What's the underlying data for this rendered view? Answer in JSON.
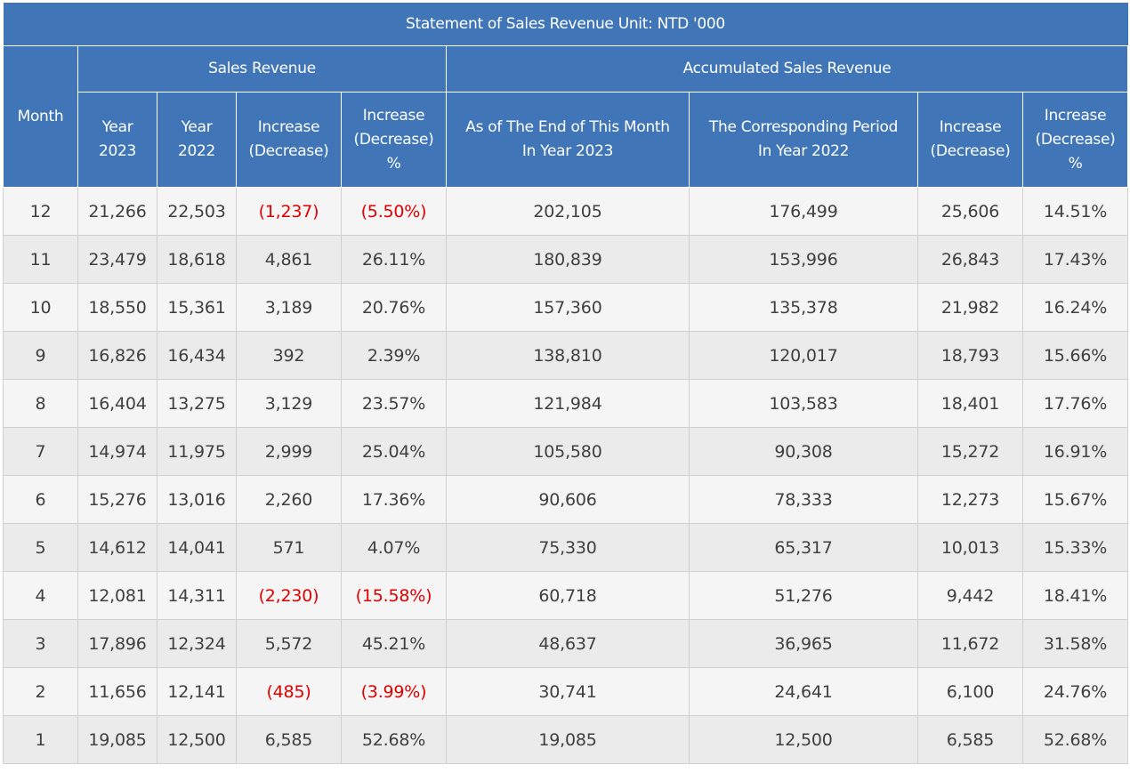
{
  "title": "Statement of Sales Revenue  Unit: NTD '000",
  "headers": {
    "month": "Month",
    "sales_revenue": "Sales Revenue",
    "accumulated": "Accumulated Sales Revenue",
    "year2023_line1": "Year",
    "year2023_line2": "2023",
    "year2022_line1": "Year",
    "year2022_line2": "2022",
    "inc_line1": "Increase",
    "inc_line2": "(Decrease)",
    "incpct_line1": "Increase",
    "incpct_line2": "(Decrease)",
    "incpct_line3": "%",
    "asof_line1": "As of The End of This Month",
    "asof_line2": "In Year 2023",
    "corr_line1": "The Corresponding Period",
    "corr_line2": "In Year 2022",
    "acc_inc_line1": "Increase",
    "acc_inc_line2": "(Decrease)",
    "acc_incpct_line1": "Increase",
    "acc_incpct_line2": "(Decrease)",
    "acc_incpct_line3": "%"
  },
  "rows": [
    {
      "month": "12",
      "y2023": "21,266",
      "y2022": "22,503",
      "inc": "(1,237)",
      "inc_pct": "(5.50%)",
      "acc2023": "202,105",
      "acc2022": "176,499",
      "acc_inc": "25,606",
      "acc_pct": "14.51%"
    },
    {
      "month": "11",
      "y2023": "23,479",
      "y2022": "18,618",
      "inc": "4,861",
      "inc_pct": "26.11%",
      "acc2023": "180,839",
      "acc2022": "153,996",
      "acc_inc": "26,843",
      "acc_pct": "17.43%"
    },
    {
      "month": "10",
      "y2023": "18,550",
      "y2022": "15,361",
      "inc": "3,189",
      "inc_pct": "20.76%",
      "acc2023": "157,360",
      "acc2022": "135,378",
      "acc_inc": "21,982",
      "acc_pct": "16.24%"
    },
    {
      "month": "9",
      "y2023": "16,826",
      "y2022": "16,434",
      "inc": "392",
      "inc_pct": "2.39%",
      "acc2023": "138,810",
      "acc2022": "120,017",
      "acc_inc": "18,793",
      "acc_pct": "15.66%"
    },
    {
      "month": "8",
      "y2023": "16,404",
      "y2022": "13,275",
      "inc": "3,129",
      "inc_pct": "23.57%",
      "acc2023": "121,984",
      "acc2022": "103,583",
      "acc_inc": "18,401",
      "acc_pct": "17.76%"
    },
    {
      "month": "7",
      "y2023": "14,974",
      "y2022": "11,975",
      "inc": "2,999",
      "inc_pct": "25.04%",
      "acc2023": "105,580",
      "acc2022": "90,308",
      "acc_inc": "15,272",
      "acc_pct": "16.91%"
    },
    {
      "month": "6",
      "y2023": "15,276",
      "y2022": "13,016",
      "inc": "2,260",
      "inc_pct": "17.36%",
      "acc2023": "90,606",
      "acc2022": "78,333",
      "acc_inc": "12,273",
      "acc_pct": "15.67%"
    },
    {
      "month": "5",
      "y2023": "14,612",
      "y2022": "14,041",
      "inc": "571",
      "inc_pct": "4.07%",
      "acc2023": "75,330",
      "acc2022": "65,317",
      "acc_inc": "10,013",
      "acc_pct": "15.33%"
    },
    {
      "month": "4",
      "y2023": "12,081",
      "y2022": "14,311",
      "inc": "(2,230)",
      "inc_pct": "(15.58%)",
      "acc2023": "60,718",
      "acc2022": "51,276",
      "acc_inc": "9,442",
      "acc_pct": "18.41%"
    },
    {
      "month": "3",
      "y2023": "17,896",
      "y2022": "12,324",
      "inc": "5,572",
      "inc_pct": "45.21%",
      "acc2023": "48,637",
      "acc2022": "36,965",
      "acc_inc": "11,672",
      "acc_pct": "31.58%"
    },
    {
      "month": "2",
      "y2023": "11,656",
      "y2022": "12,141",
      "inc": "(485)",
      "inc_pct": "(3.99%)",
      "acc2023": "30,741",
      "acc2022": "24,641",
      "acc_inc": "6,100",
      "acc_pct": "24.76%"
    },
    {
      "month": "1",
      "y2023": "19,085",
      "y2022": "12,500",
      "inc": "6,585",
      "inc_pct": "52.68%",
      "acc2023": "19,085",
      "acc2022": "12,500",
      "acc_inc": "6,585",
      "acc_pct": "52.68%"
    }
  ],
  "colors": {
    "header_bg": "#4076b8",
    "negative": "#e00000",
    "row_odd": "#f5f5f5",
    "row_even": "#ebebeb"
  }
}
